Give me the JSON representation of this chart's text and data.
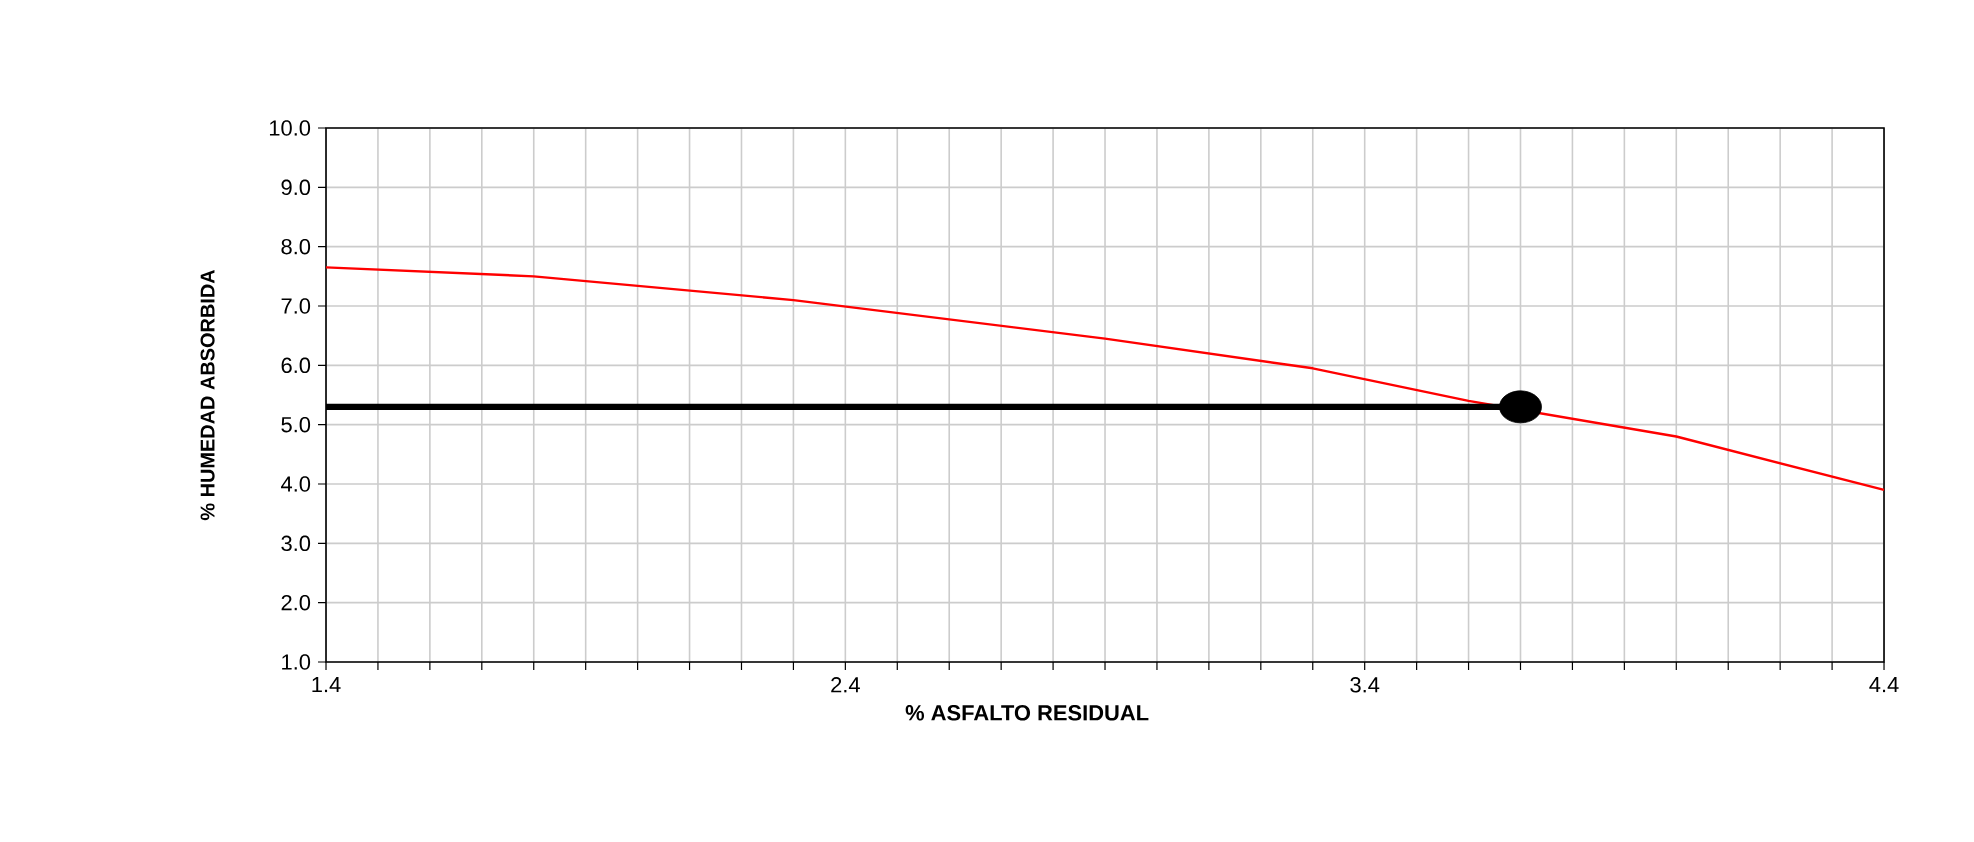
{
  "chart_data": {
    "type": "line",
    "xlabel": "% ASFALTO RESIDUAL",
    "ylabel": "% HUMEDAD ABSORBIDA",
    "xlim": [
      1.4,
      4.4
    ],
    "ylim": [
      1.0,
      10.0
    ],
    "xticks": [
      1.4,
      {
        "value": 1.5,
        "label": null
      },
      {
        "value": 1.6,
        "label": null
      },
      {
        "value": 1.7,
        "label": null
      },
      {
        "value": 1.8,
        "label": null
      },
      {
        "value": 1.9,
        "label": null
      },
      {
        "value": 2.0,
        "label": null
      },
      {
        "value": 2.1,
        "label": null
      },
      {
        "value": 2.2,
        "label": null
      },
      {
        "value": 2.3,
        "label": null
      },
      2.4,
      {
        "value": 2.5,
        "label": null
      },
      {
        "value": 2.6,
        "label": null
      },
      {
        "value": 2.7,
        "label": null
      },
      {
        "value": 2.8,
        "label": null
      },
      {
        "value": 2.9,
        "label": null
      },
      {
        "value": 3.0,
        "label": null
      },
      {
        "value": 3.1,
        "label": null
      },
      {
        "value": 3.2,
        "label": null
      },
      {
        "value": 3.3,
        "label": null
      },
      3.4,
      {
        "value": 3.5,
        "label": null
      },
      {
        "value": 3.6,
        "label": null
      },
      {
        "value": 3.7,
        "label": null
      },
      {
        "value": 3.8,
        "label": null
      },
      {
        "value": 3.9,
        "label": null
      },
      {
        "value": 4.0,
        "label": null
      },
      {
        "value": 4.1,
        "label": null
      },
      {
        "value": 4.2,
        "label": null
      },
      {
        "value": 4.3,
        "label": null
      },
      4.4
    ],
    "yticks": [
      {
        "value": 1.0,
        "label": "1.0"
      },
      {
        "value": 2.0,
        "label": "2.0"
      },
      {
        "value": 3.0,
        "label": "3.0"
      },
      {
        "value": 4.0,
        "label": "4.0"
      },
      {
        "value": 5.0,
        "label": "5.0"
      },
      {
        "value": 6.0,
        "label": "6.0"
      },
      {
        "value": 7.0,
        "label": "7.0"
      },
      {
        "value": 8.0,
        "label": "8.0"
      },
      {
        "value": 9.0,
        "label": "9.0"
      },
      {
        "value": 10.0,
        "label": "10.0"
      }
    ],
    "grid": true,
    "series": [
      {
        "color": "#ff0000",
        "x": [
          1.4,
          1.8,
          2.3,
          2.9,
          3.3,
          3.6,
          4.0,
          4.4
        ],
        "values": [
          7.65,
          7.5,
          7.1,
          6.45,
          5.95,
          5.4,
          4.8,
          3.9
        ]
      },
      {
        "type": "line",
        "color": "#000000",
        "x": [
          1.4,
          3.7
        ],
        "values": [
          5.3,
          5.3
        ]
      },
      {
        "type": "scatter",
        "color": "#000000",
        "x": [
          3.7
        ],
        "values": [
          5.3
        ]
      }
    ]
  }
}
